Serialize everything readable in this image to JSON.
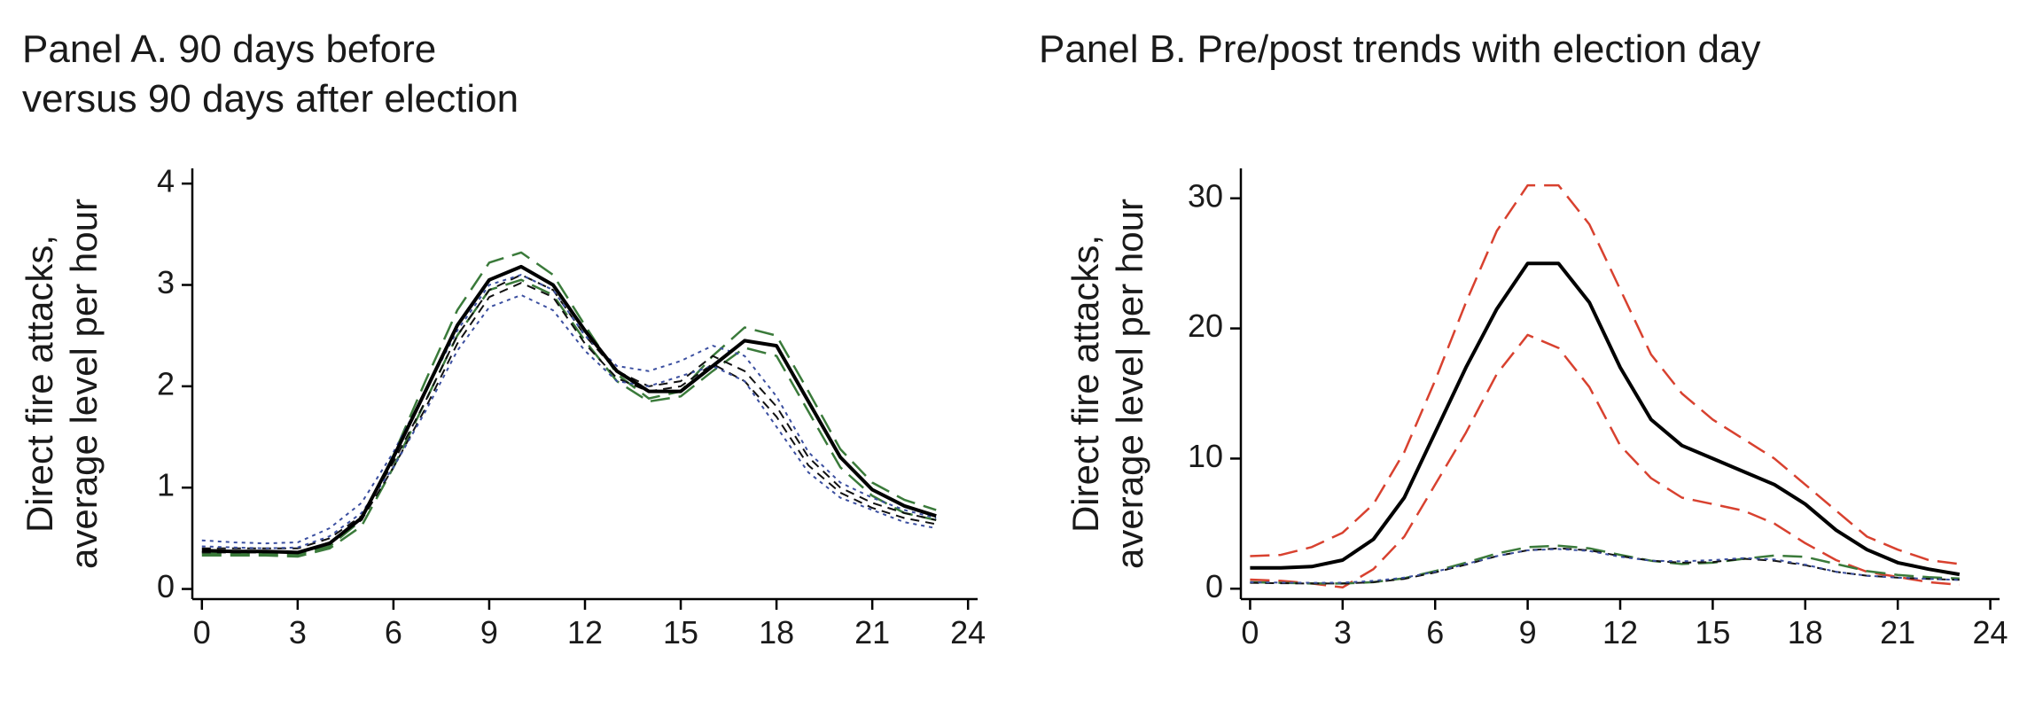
{
  "chart_data": [
    {
      "type": "line",
      "title": [
        "Panel A. 90 days before",
        "versus 90 days after election"
      ],
      "ylabel": [
        "Direct fire attacks,",
        "average level per hour"
      ],
      "x": [
        0,
        1,
        2,
        3,
        4,
        5,
        6,
        7,
        8,
        9,
        10,
        11,
        12,
        13,
        14,
        15,
        16,
        17,
        18,
        19,
        20,
        21,
        22,
        23
      ],
      "xlim": [
        -0.3,
        24.3
      ],
      "xticks": [
        0,
        3,
        6,
        9,
        12,
        15,
        18,
        21,
        24
      ],
      "ylim": [
        -0.1,
        4.15
      ],
      "yticks": [
        0,
        1,
        2,
        3,
        4
      ],
      "series": [
        {
          "color": "#3a7a3a",
          "dash": "long",
          "linewidth": 2.5,
          "values": [
            0.35,
            0.35,
            0.35,
            0.34,
            0.42,
            0.68,
            1.32,
            2.05,
            2.75,
            3.22,
            3.32,
            3.1,
            2.6,
            2.12,
            1.88,
            1.95,
            2.3,
            2.58,
            2.5,
            1.95,
            1.38,
            1.05,
            0.88,
            0.78
          ]
        },
        {
          "color": "#3a7a3a",
          "dash": "long",
          "linewidth": 2.5,
          "values": [
            0.33,
            0.33,
            0.33,
            0.32,
            0.4,
            0.62,
            1.2,
            1.85,
            2.5,
            2.95,
            3.05,
            2.9,
            2.45,
            2.05,
            1.85,
            1.9,
            2.15,
            2.38,
            2.3,
            1.75,
            1.2,
            0.92,
            0.75,
            0.68
          ]
        },
        {
          "color": "#111111",
          "dash": "short",
          "linewidth": 2,
          "values": [
            0.4,
            0.4,
            0.4,
            0.4,
            0.5,
            0.72,
            1.25,
            1.85,
            2.5,
            2.95,
            3.1,
            2.95,
            2.5,
            2.15,
            2.0,
            2.05,
            2.3,
            2.15,
            1.8,
            1.3,
            1.0,
            0.85,
            0.75,
            0.68
          ]
        },
        {
          "color": "#111111",
          "dash": "short",
          "linewidth": 2,
          "values": [
            0.36,
            0.36,
            0.36,
            0.36,
            0.46,
            0.68,
            1.2,
            1.78,
            2.42,
            2.88,
            3.02,
            2.88,
            2.42,
            2.08,
            1.95,
            2.0,
            2.22,
            2.05,
            1.7,
            1.22,
            0.95,
            0.8,
            0.7,
            0.64
          ]
        },
        {
          "color": "#3b4fa0",
          "dash": "dot",
          "linewidth": 2,
          "values": [
            0.48,
            0.46,
            0.45,
            0.46,
            0.6,
            0.85,
            1.35,
            1.95,
            2.55,
            3.0,
            3.1,
            2.95,
            2.5,
            2.2,
            2.15,
            2.25,
            2.4,
            2.3,
            1.9,
            1.35,
            1.05,
            0.9,
            0.78,
            0.7
          ]
        },
        {
          "color": "#3b4fa0",
          "dash": "dot",
          "linewidth": 2,
          "values": [
            0.42,
            0.41,
            0.4,
            0.41,
            0.52,
            0.75,
            1.2,
            1.75,
            2.35,
            2.78,
            2.9,
            2.75,
            2.35,
            2.05,
            2.0,
            2.1,
            2.2,
            2.05,
            1.6,
            1.15,
            0.9,
            0.78,
            0.66,
            0.6
          ]
        },
        {
          "color": "#000000",
          "dash": "solid",
          "linewidth": 4,
          "values": [
            0.38,
            0.37,
            0.37,
            0.36,
            0.45,
            0.7,
            1.3,
            1.95,
            2.6,
            3.05,
            3.18,
            3.0,
            2.55,
            2.15,
            1.95,
            1.95,
            2.2,
            2.45,
            2.4,
            1.85,
            1.3,
            0.98,
            0.82,
            0.72
          ]
        }
      ]
    },
    {
      "type": "line",
      "title": [
        "Panel B. Pre/post trends with election day"
      ],
      "ylabel": [
        "Direct fire attacks,",
        "average level per hour"
      ],
      "x": [
        0,
        1,
        2,
        3,
        4,
        5,
        6,
        7,
        8,
        9,
        10,
        11,
        12,
        13,
        14,
        15,
        16,
        17,
        18,
        19,
        20,
        21,
        22,
        23
      ],
      "xlim": [
        -0.3,
        24.3
      ],
      "xticks": [
        0,
        3,
        6,
        9,
        12,
        15,
        18,
        21,
        24
      ],
      "ylim": [
        -0.8,
        32.3
      ],
      "yticks": [
        0,
        10,
        20,
        30
      ],
      "series": [
        {
          "color": "#d8412f",
          "dash": "long",
          "linewidth": 2.5,
          "values": [
            2.5,
            2.6,
            3.2,
            4.3,
            6.5,
            10.5,
            16,
            22,
            27.5,
            31,
            31,
            28,
            23,
            18,
            15,
            13,
            11.5,
            10,
            8,
            6,
            4,
            3,
            2.2,
            1.9
          ]
        },
        {
          "color": "#d8412f",
          "dash": "long",
          "linewidth": 2.5,
          "values": [
            0.7,
            0.6,
            0.4,
            0.1,
            1.5,
            4,
            8,
            12,
            16.5,
            19.5,
            18.5,
            15.5,
            11,
            8.5,
            7,
            6.5,
            6,
            5,
            3.5,
            2.2,
            1.3,
            0.9,
            0.5,
            0.3
          ]
        },
        {
          "color": "#3a7a3a",
          "dash": "long",
          "linewidth": 2.5,
          "values": [
            0.5,
            0.45,
            0.4,
            0.4,
            0.5,
            0.8,
            1.35,
            2.0,
            2.7,
            3.2,
            3.3,
            3.1,
            2.6,
            2.15,
            1.9,
            2.0,
            2.3,
            2.55,
            2.45,
            1.9,
            1.35,
            1.05,
            0.88,
            0.78
          ]
        },
        {
          "color": "#111111",
          "dash": "short",
          "linewidth": 2,
          "values": [
            0.45,
            0.42,
            0.4,
            0.4,
            0.5,
            0.75,
            1.25,
            1.85,
            2.5,
            2.95,
            3.1,
            2.95,
            2.5,
            2.15,
            2.0,
            2.05,
            2.3,
            2.15,
            1.8,
            1.3,
            1.0,
            0.85,
            0.75,
            0.68
          ]
        },
        {
          "color": "#3b4fa0",
          "dash": "dot",
          "linewidth": 2,
          "values": [
            0.5,
            0.47,
            0.45,
            0.46,
            0.6,
            0.85,
            1.3,
            1.9,
            2.5,
            2.95,
            3.05,
            2.9,
            2.45,
            2.15,
            2.1,
            2.2,
            2.35,
            2.25,
            1.85,
            1.3,
            1.0,
            0.85,
            0.75,
            0.68
          ]
        },
        {
          "color": "#000000",
          "dash": "solid",
          "linewidth": 4,
          "values": [
            1.6,
            1.6,
            1.7,
            2.2,
            3.8,
            7,
            12,
            17,
            21.5,
            25,
            25,
            22,
            17,
            13,
            11,
            10,
            9,
            8,
            6.5,
            4.5,
            3,
            2,
            1.5,
            1.1
          ]
        }
      ]
    }
  ]
}
